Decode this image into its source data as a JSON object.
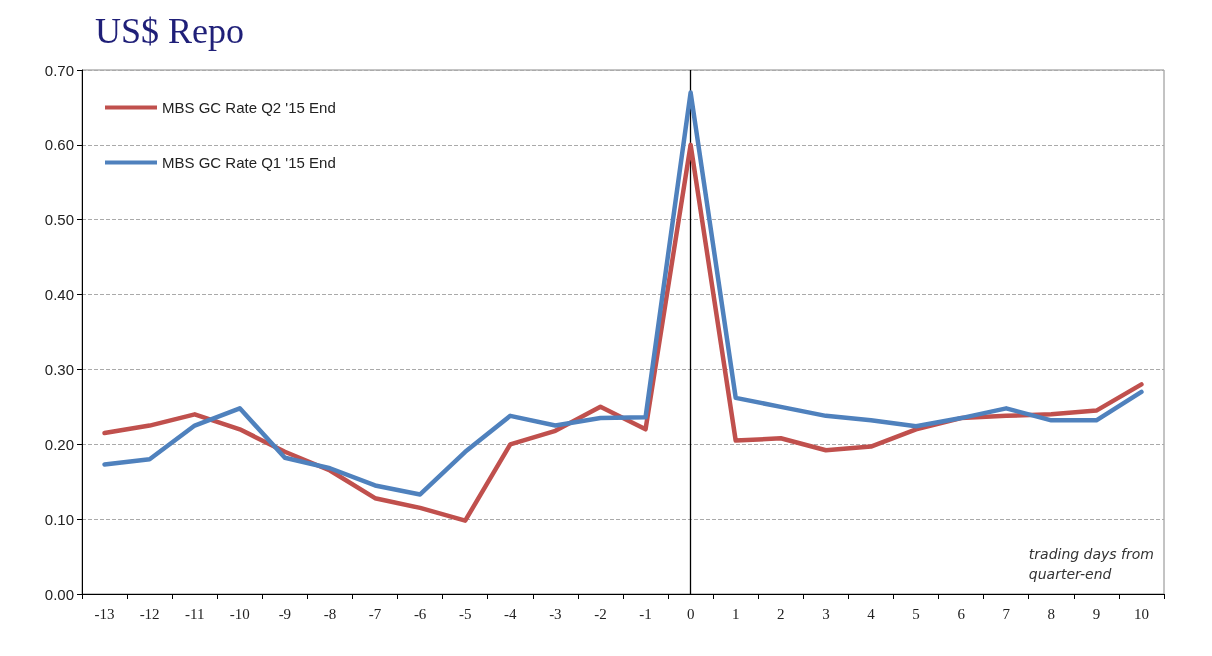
{
  "chart_data": {
    "type": "line",
    "title": "US$ Repo",
    "categories": [
      "-13",
      "-12",
      "-11",
      "-10",
      "-9",
      "-8",
      "-7",
      "-6",
      "-5",
      "-4",
      "-3",
      "-2",
      "-1",
      "0",
      "1",
      "2",
      "3",
      "4",
      "5",
      "6",
      "7",
      "8",
      "9",
      "10"
    ],
    "series": [
      {
        "name": "MBS GC Rate Q2 '15 End",
        "color": "#c0504d",
        "values": [
          0.215,
          0.225,
          0.24,
          0.22,
          0.19,
          0.165,
          0.128,
          0.115,
          0.098,
          0.2,
          0.218,
          0.25,
          0.22,
          0.6,
          0.205,
          0.208,
          0.192,
          0.197,
          0.22,
          0.235,
          0.238,
          0.24,
          0.245,
          0.28
        ]
      },
      {
        "name": "MBS GC Rate Q1 '15 End",
        "color": "#4f81bd",
        "values": [
          0.173,
          0.18,
          0.225,
          0.248,
          0.182,
          0.168,
          0.145,
          0.133,
          0.19,
          0.238,
          0.225,
          0.235,
          0.236,
          0.67,
          0.262,
          0.25,
          0.238,
          0.232,
          0.224,
          0.235,
          0.248,
          0.232,
          0.232,
          0.27
        ]
      }
    ],
    "ylim": [
      0,
      0.7
    ],
    "yticks": [
      {
        "value": 0,
        "label": "0.00"
      },
      {
        "value": 0.1,
        "label": "0.10"
      },
      {
        "value": 0.2,
        "label": "0.20"
      },
      {
        "value": 0.3,
        "label": "0.30"
      },
      {
        "value": 0.4,
        "label": "0.40"
      },
      {
        "value": 0.5,
        "label": "0.50"
      },
      {
        "value": 0.6,
        "label": "0.60"
      },
      {
        "value": 0.7,
        "label": "0.70"
      }
    ],
    "ref_lines": [
      {
        "axis": "x",
        "value": "0",
        "color": "#000000"
      }
    ],
    "annotations": [
      "trading days from quarter-end"
    ],
    "grid": "y",
    "legend": "top left",
    "marker": "none",
    "line_style": "solid"
  }
}
